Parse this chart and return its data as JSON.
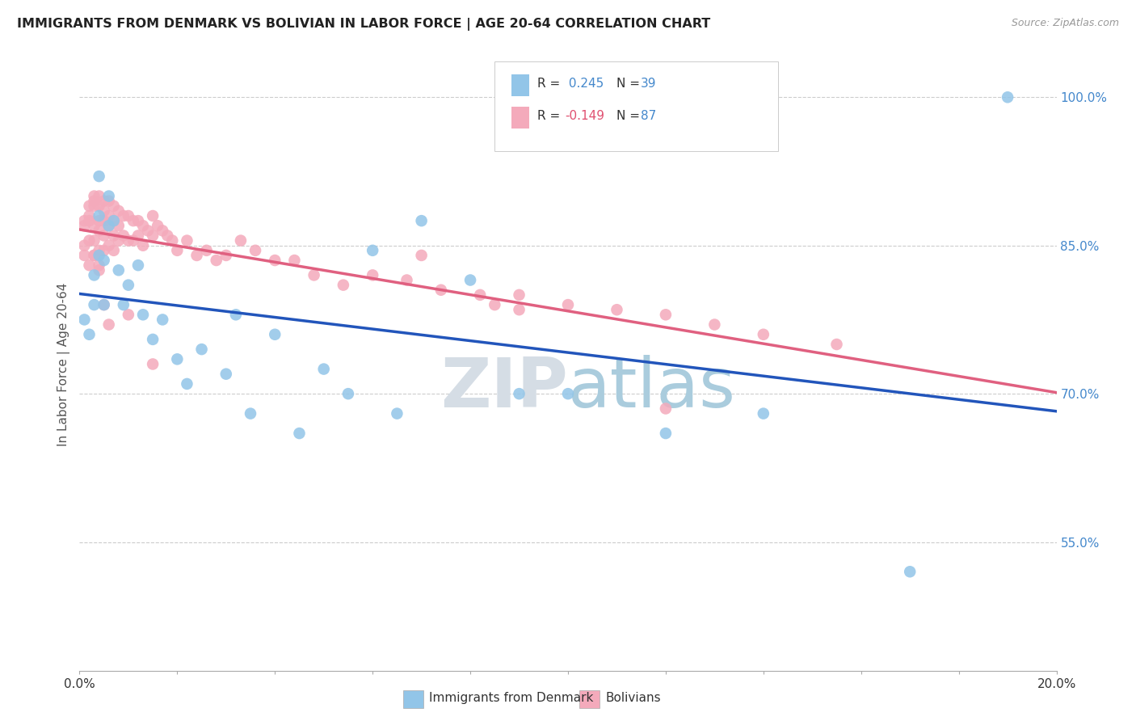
{
  "title": "IMMIGRANTS FROM DENMARK VS BOLIVIAN IN LABOR FORCE | AGE 20-64 CORRELATION CHART",
  "source": "Source: ZipAtlas.com",
  "ylabel": "In Labor Force | Age 20-64",
  "yticks": [
    0.55,
    0.7,
    0.85,
    1.0
  ],
  "ytick_labels": [
    "55.0%",
    "70.0%",
    "85.0%",
    "100.0%"
  ],
  "xmin": 0.0,
  "xmax": 0.2,
  "ymin": 0.42,
  "ymax": 1.04,
  "r_denmark": "0.245",
  "n_denmark": "39",
  "r_bolivia": "-0.149",
  "n_bolivia": "87",
  "denmark_color": "#92C5E8",
  "bolivia_color": "#F4AABB",
  "denmark_line_color": "#2255BB",
  "bolivia_line_color": "#E06080",
  "watermark_zip": "ZIP",
  "watermark_atlas": "atlas",
  "denmark_x": [
    0.001,
    0.002,
    0.003,
    0.003,
    0.004,
    0.004,
    0.004,
    0.005,
    0.005,
    0.006,
    0.006,
    0.007,
    0.008,
    0.009,
    0.01,
    0.012,
    0.013,
    0.015,
    0.017,
    0.02,
    0.022,
    0.025,
    0.03,
    0.032,
    0.035,
    0.04,
    0.045,
    0.05,
    0.055,
    0.06,
    0.065,
    0.07,
    0.08,
    0.09,
    0.1,
    0.12,
    0.14,
    0.17,
    0.19
  ],
  "denmark_y": [
    0.775,
    0.76,
    0.82,
    0.79,
    0.84,
    0.88,
    0.92,
    0.835,
    0.79,
    0.9,
    0.87,
    0.875,
    0.825,
    0.79,
    0.81,
    0.83,
    0.78,
    0.755,
    0.775,
    0.735,
    0.71,
    0.745,
    0.72,
    0.78,
    0.68,
    0.76,
    0.66,
    0.725,
    0.7,
    0.845,
    0.68,
    0.875,
    0.815,
    0.7,
    0.7,
    0.66,
    0.68,
    0.52,
    1.0
  ],
  "bolivia_x": [
    0.001,
    0.001,
    0.001,
    0.001,
    0.002,
    0.002,
    0.002,
    0.002,
    0.002,
    0.003,
    0.003,
    0.003,
    0.003,
    0.003,
    0.003,
    0.004,
    0.004,
    0.004,
    0.004,
    0.004,
    0.004,
    0.005,
    0.005,
    0.005,
    0.005,
    0.005,
    0.006,
    0.006,
    0.006,
    0.006,
    0.007,
    0.007,
    0.007,
    0.007,
    0.008,
    0.008,
    0.008,
    0.009,
    0.009,
    0.01,
    0.01,
    0.011,
    0.011,
    0.012,
    0.012,
    0.013,
    0.013,
    0.014,
    0.015,
    0.015,
    0.016,
    0.017,
    0.018,
    0.019,
    0.02,
    0.022,
    0.024,
    0.026,
    0.028,
    0.03,
    0.033,
    0.036,
    0.04,
    0.044,
    0.048,
    0.054,
    0.06,
    0.067,
    0.074,
    0.082,
    0.09,
    0.1,
    0.11,
    0.12,
    0.13,
    0.14,
    0.155,
    0.003,
    0.004,
    0.005,
    0.006,
    0.01,
    0.015,
    0.07,
    0.085,
    0.09,
    0.12
  ],
  "bolivia_y": [
    0.84,
    0.875,
    0.87,
    0.85,
    0.89,
    0.88,
    0.875,
    0.855,
    0.83,
    0.9,
    0.895,
    0.89,
    0.87,
    0.855,
    0.84,
    0.9,
    0.89,
    0.875,
    0.865,
    0.845,
    0.825,
    0.895,
    0.885,
    0.875,
    0.86,
    0.845,
    0.895,
    0.88,
    0.87,
    0.85,
    0.89,
    0.875,
    0.86,
    0.845,
    0.885,
    0.87,
    0.855,
    0.88,
    0.86,
    0.88,
    0.855,
    0.875,
    0.855,
    0.875,
    0.86,
    0.87,
    0.85,
    0.865,
    0.88,
    0.86,
    0.87,
    0.865,
    0.86,
    0.855,
    0.845,
    0.855,
    0.84,
    0.845,
    0.835,
    0.84,
    0.855,
    0.845,
    0.835,
    0.835,
    0.82,
    0.81,
    0.82,
    0.815,
    0.805,
    0.8,
    0.8,
    0.79,
    0.785,
    0.78,
    0.77,
    0.76,
    0.75,
    0.84,
    0.83,
    0.79,
    0.77,
    0.78,
    0.73,
    0.84,
    0.79,
    0.785,
    0.685
  ]
}
